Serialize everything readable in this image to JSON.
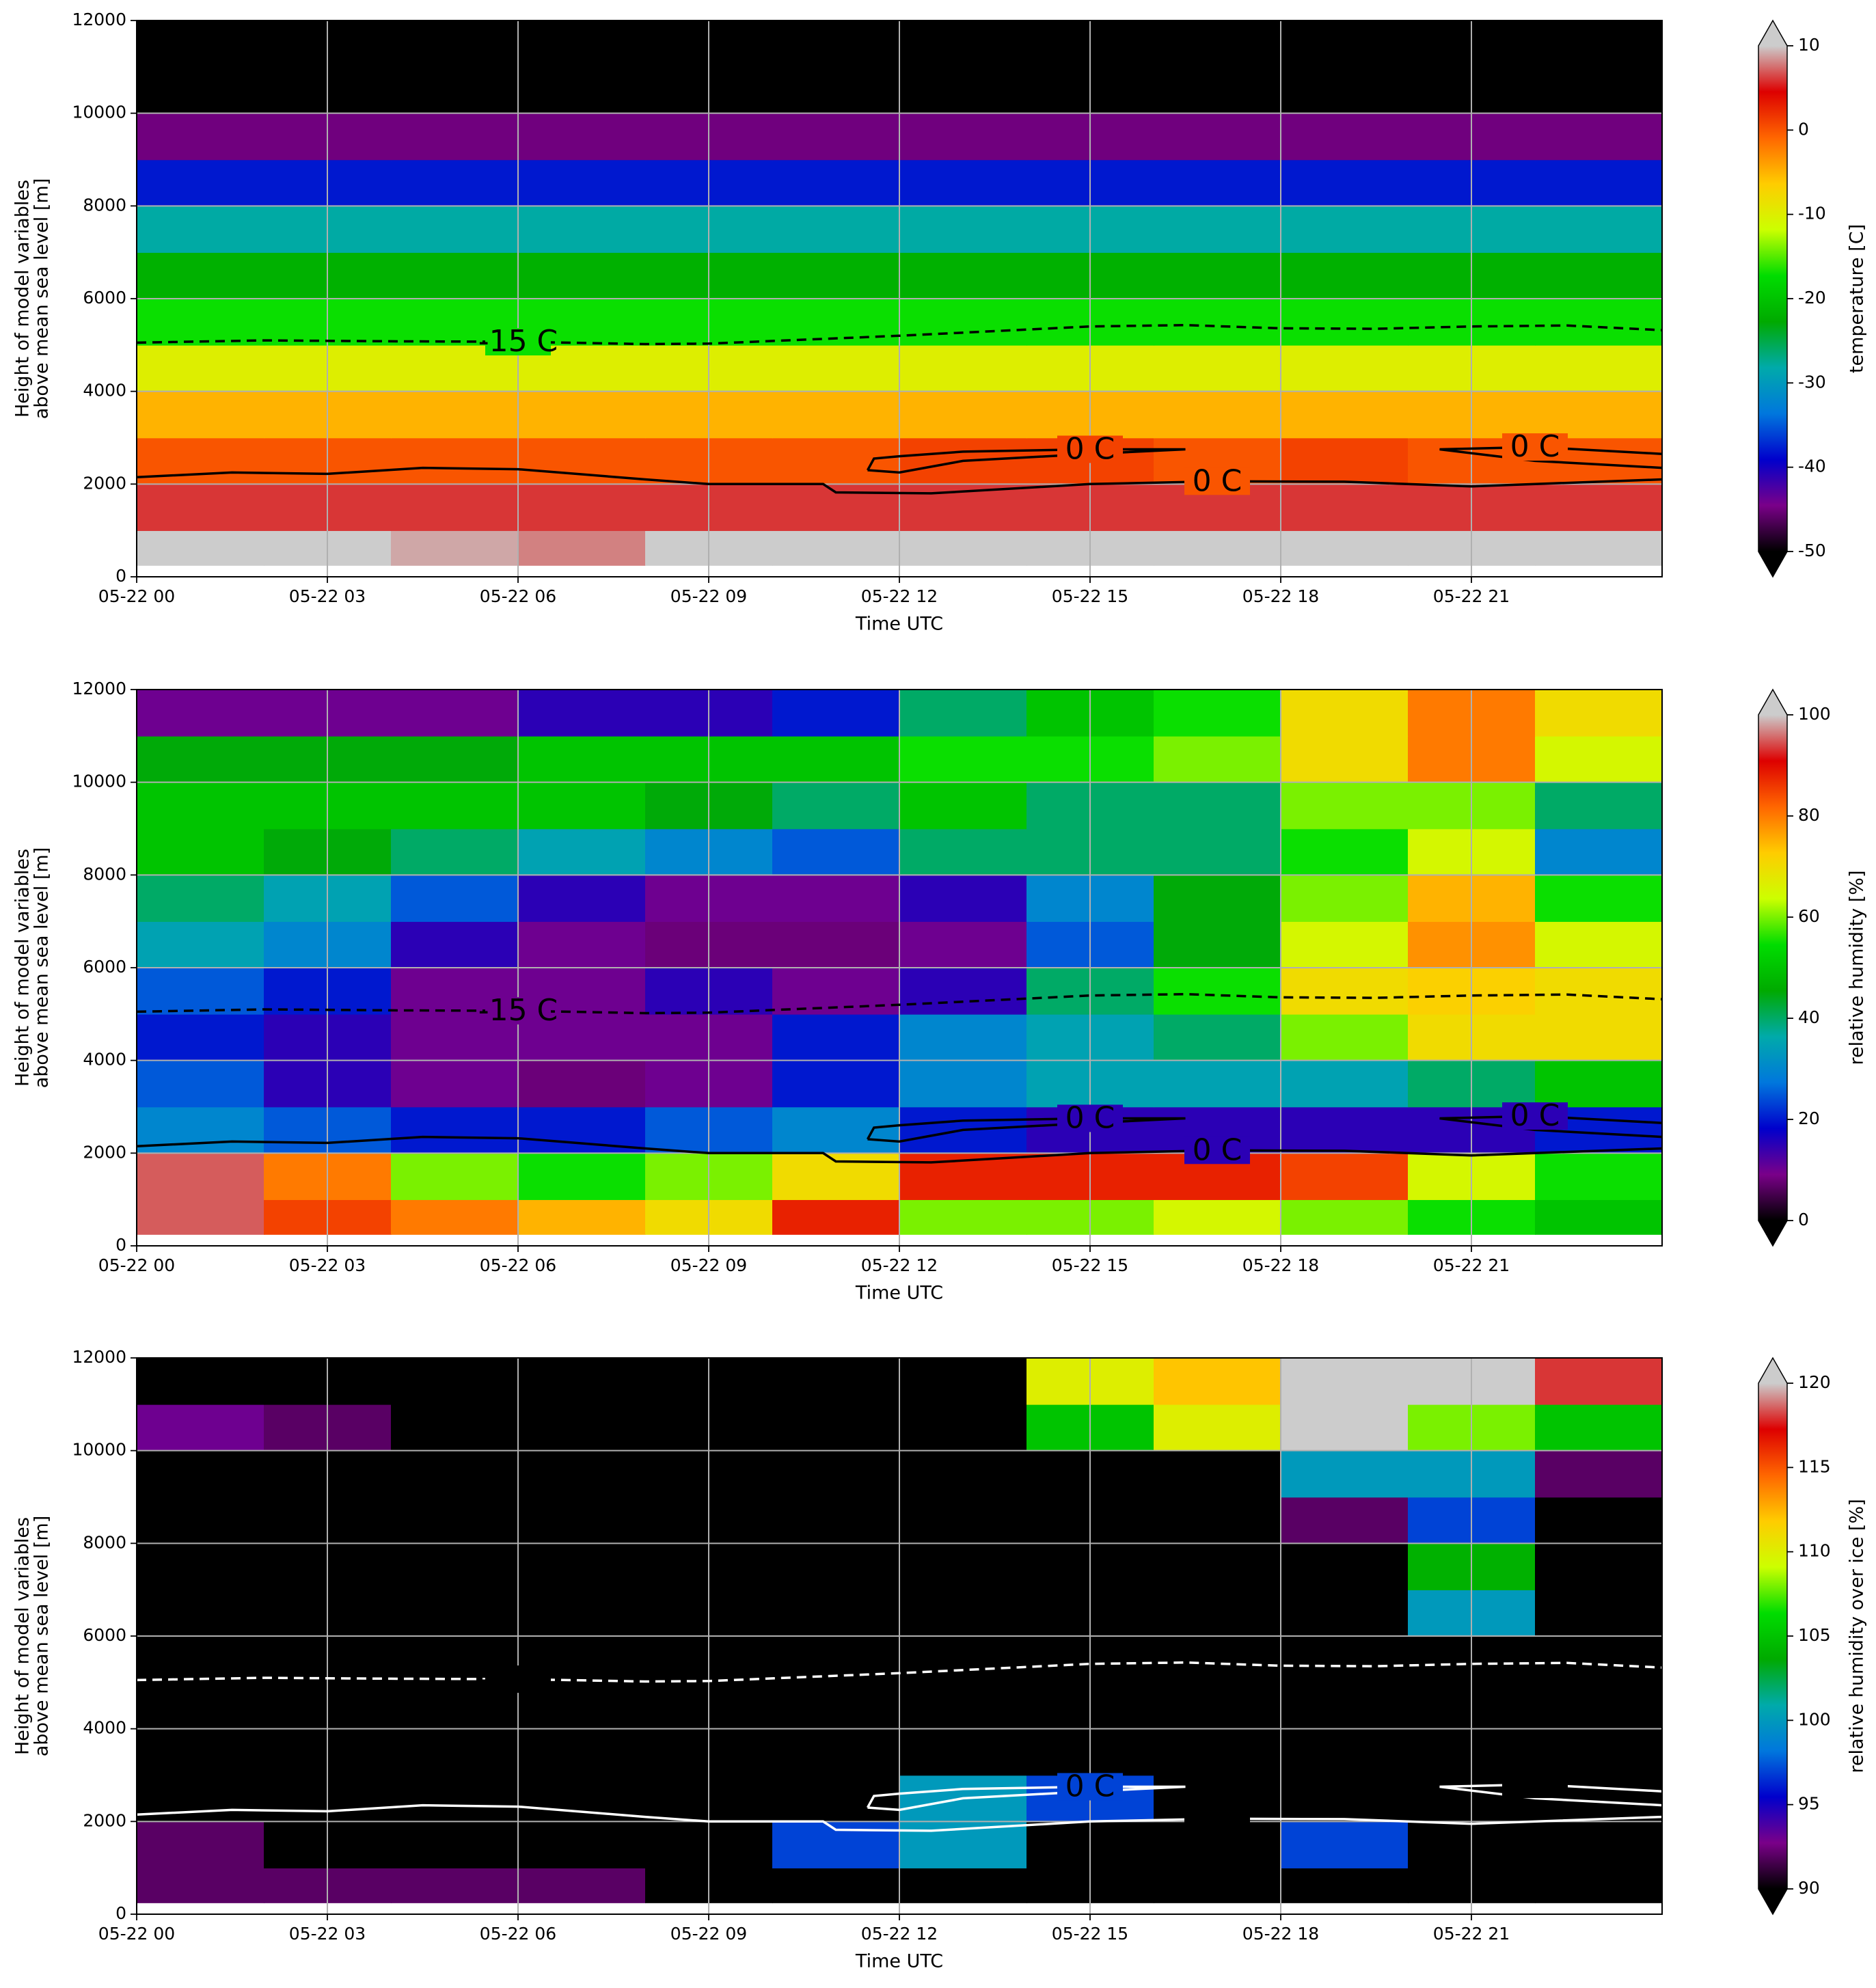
{
  "chart_data": [
    {
      "type": "heatmap",
      "xlabel": "Time UTC",
      "ylabel": [
        "Height of model variables",
        "above mean sea level [m]"
      ],
      "xlim": [
        0,
        24
      ],
      "ylim": [
        0,
        12000
      ],
      "xticks": [
        {
          "value": 0,
          "label": "05-22 00"
        },
        {
          "value": 3,
          "label": "05-22 03"
        },
        {
          "value": 6,
          "label": "05-22 06"
        },
        {
          "value": 9,
          "label": "05-22 09"
        },
        {
          "value": 12,
          "label": "05-22 12"
        },
        {
          "value": 15,
          "label": "05-22 15"
        },
        {
          "value": 18,
          "label": "05-22 18"
        },
        {
          "value": 21,
          "label": "05-22 21"
        }
      ],
      "yticks": [
        0,
        2000,
        4000,
        6000,
        8000,
        10000,
        12000
      ],
      "grid": true,
      "x_edges": [
        0,
        2,
        4,
        6,
        8,
        10,
        12,
        14,
        16,
        18,
        20,
        22,
        24
      ],
      "y_edges": [
        250,
        1000,
        2000,
        3000,
        4000,
        5000,
        6000,
        7000,
        8000,
        9000,
        10000,
        11000,
        12000
      ],
      "z": [
        [
          11,
          10,
          9,
          8,
          11,
          12,
          12,
          12,
          12,
          12,
          12,
          12
        ],
        [
          6,
          6,
          6,
          6,
          6,
          6,
          6,
          6,
          6,
          6,
          6,
          6
        ],
        [
          0,
          0,
          0,
          0,
          0,
          0,
          1,
          1,
          0,
          1,
          0,
          0
        ],
        [
          -5,
          -5,
          -5,
          -5,
          -5,
          -5,
          -5,
          -5,
          -5,
          -5,
          -5,
          -5
        ],
        [
          -10,
          -10,
          -10,
          -10,
          -10,
          -10,
          -10,
          -10,
          -10,
          -10,
          -10,
          -10
        ],
        [
          -17,
          -17,
          -17,
          -17,
          -17,
          -17,
          -17,
          -17,
          -17,
          -17,
          -17,
          -17
        ],
        [
          -22,
          -22,
          -22,
          -22,
          -22,
          -22,
          -22,
          -22,
          -22,
          -22,
          -22,
          -22
        ],
        [
          -28,
          -28,
          -28,
          -28,
          -28,
          -28,
          -28,
          -28,
          -28,
          -28,
          -28,
          -28
        ],
        [
          -38,
          -38,
          -38,
          -38,
          -38,
          -38,
          -38,
          -38,
          -38,
          -38,
          -38,
          -38
        ],
        [
          -45,
          -45,
          -45,
          -45,
          -45,
          -45,
          -45,
          -45,
          -45,
          -45,
          -45,
          -45
        ],
        [
          -55,
          -55,
          -55,
          -55,
          -55,
          -55,
          -55,
          -55,
          -55,
          -55,
          -55,
          -55
        ],
        [
          -55,
          -55,
          -55,
          -55,
          -55,
          -55,
          -55,
          -55,
          -55,
          -55,
          -55,
          -55
        ]
      ],
      "colormap": [
        "#000000",
        "#7a0089",
        "#0000cc",
        "#0077dd",
        "#00aaaa",
        "#00aa00",
        "#00dd00",
        "#ccff00",
        "#ffcc00",
        "#ff6600",
        "#dd0000",
        "#cccccc"
      ],
      "clim": [
        -50,
        10
      ],
      "cticks": [
        -50,
        -40,
        -30,
        -20,
        -10,
        0,
        10
      ],
      "clabel": "temperature [C]",
      "contours": [
        {
          "label": "-15 C",
          "style": "dashed",
          "color": "#000000",
          "x": [
            0,
            2,
            4,
            6,
            8,
            9,
            12,
            15,
            16.5,
            18,
            19.5,
            21,
            22.5,
            24
          ],
          "y": [
            5050,
            5100,
            5080,
            5070,
            5020,
            5030,
            5200,
            5400,
            5430,
            5360,
            5350,
            5400,
            5420,
            5320
          ]
        },
        {
          "label": "0 C",
          "style": "solid",
          "color": "#000000",
          "x": [
            0,
            1.5,
            3,
            4.5,
            6,
            8,
            9,
            10.8,
            11,
            12.5,
            15,
            17,
            19,
            21,
            24
          ],
          "y": [
            2150,
            2250,
            2220,
            2350,
            2320,
            2100,
            2000,
            2000,
            1820,
            1800,
            2000,
            2060,
            2050,
            1950,
            2100
          ]
        },
        {
          "label": "0 C",
          "style": "solid",
          "color": "#000000",
          "x": [
            11.5,
            11.6,
            12,
            13,
            15,
            16.5,
            15,
            13,
            12,
            11.5
          ],
          "y": [
            2300,
            2550,
            2600,
            2700,
            2750,
            2750,
            2650,
            2500,
            2250,
            2300
          ]
        },
        {
          "label": "0 C",
          "style": "solid",
          "color": "#000000",
          "x": [
            24,
            22,
            20.5,
            22,
            24
          ],
          "y": [
            2650,
            2800,
            2750,
            2500,
            2350
          ]
        }
      ]
    },
    {
      "type": "heatmap",
      "xlabel": "Time UTC",
      "ylabel": [
        "Height of model variables",
        "above mean sea level [m]"
      ],
      "xlim": [
        0,
        24
      ],
      "ylim": [
        0,
        12000
      ],
      "xticks": [
        {
          "value": 0,
          "label": "05-22 00"
        },
        {
          "value": 3,
          "label": "05-22 03"
        },
        {
          "value": 6,
          "label": "05-22 06"
        },
        {
          "value": 9,
          "label": "05-22 09"
        },
        {
          "value": 12,
          "label": "05-22 12"
        },
        {
          "value": 15,
          "label": "05-22 15"
        },
        {
          "value": 18,
          "label": "05-22 18"
        },
        {
          "value": 21,
          "label": "05-22 21"
        }
      ],
      "yticks": [
        0,
        2000,
        4000,
        6000,
        8000,
        10000,
        12000
      ],
      "grid": true,
      "x_edges": [
        0,
        2,
        4,
        6,
        8,
        10,
        12,
        14,
        16,
        18,
        20,
        22,
        24
      ],
      "y_edges": [
        250,
        1000,
        2000,
        3000,
        4000,
        5000,
        6000,
        7000,
        8000,
        9000,
        10000,
        11000,
        12000
      ],
      "z": [
        [
          95,
          85,
          80,
          75,
          70,
          88,
          60,
          60,
          65,
          60,
          55,
          50
        ],
        [
          95,
          80,
          60,
          55,
          60,
          70,
          88,
          88,
          88,
          85,
          65,
          55
        ],
        [
          30,
          25,
          20,
          20,
          25,
          30,
          20,
          15,
          15,
          15,
          15,
          20
        ],
        [
          25,
          15,
          10,
          8,
          10,
          20,
          30,
          35,
          35,
          35,
          40,
          50
        ],
        [
          20,
          15,
          10,
          10,
          10,
          20,
          30,
          35,
          40,
          60,
          70,
          70
        ],
        [
          25,
          20,
          10,
          10,
          15,
          10,
          15,
          40,
          55,
          70,
          72,
          70
        ],
        [
          35,
          30,
          15,
          10,
          8,
          8,
          10,
          25,
          45,
          65,
          78,
          65
        ],
        [
          40,
          35,
          25,
          15,
          10,
          10,
          15,
          30,
          45,
          60,
          75,
          55
        ],
        [
          50,
          45,
          40,
          35,
          30,
          25,
          40,
          40,
          40,
          55,
          65,
          30
        ],
        [
          50,
          50,
          50,
          50,
          45,
          40,
          50,
          40,
          40,
          60,
          60,
          40
        ],
        [
          45,
          45,
          45,
          50,
          50,
          50,
          55,
          55,
          60,
          70,
          80,
          65
        ],
        [
          10,
          10,
          10,
          15,
          15,
          20,
          40,
          50,
          55,
          70,
          80,
          70
        ]
      ],
      "colormap": [
        "#000000",
        "#7a0089",
        "#0000cc",
        "#0077dd",
        "#00aaaa",
        "#00aa00",
        "#00dd00",
        "#ccff00",
        "#ffcc00",
        "#ff6600",
        "#dd0000",
        "#cccccc"
      ],
      "clim": [
        0,
        100
      ],
      "cticks": [
        0,
        20,
        40,
        60,
        80,
        100
      ],
      "clabel": "relative humidity [%]",
      "contours": [
        {
          "label": "-15 C",
          "style": "dashed",
          "color": "#000000",
          "x": [
            0,
            2,
            4,
            6,
            8,
            9,
            12,
            15,
            16.5,
            18,
            19.5,
            21,
            22.5,
            24
          ],
          "y": [
            5050,
            5100,
            5080,
            5070,
            5020,
            5030,
            5200,
            5400,
            5430,
            5360,
            5350,
            5400,
            5420,
            5320
          ]
        },
        {
          "label": "0 C",
          "style": "solid",
          "color": "#000000",
          "x": [
            0,
            1.5,
            3,
            4.5,
            6,
            8,
            9,
            10.8,
            11,
            12.5,
            15,
            17,
            19,
            21,
            24
          ],
          "y": [
            2150,
            2250,
            2220,
            2350,
            2320,
            2100,
            2000,
            2000,
            1820,
            1800,
            2000,
            2060,
            2050,
            1950,
            2100
          ]
        },
        {
          "label": "0 C",
          "style": "solid",
          "color": "#000000",
          "x": [
            11.5,
            11.6,
            12,
            13,
            15,
            16.5,
            15,
            13,
            12,
            11.5
          ],
          "y": [
            2300,
            2550,
            2600,
            2700,
            2750,
            2750,
            2650,
            2500,
            2250,
            2300
          ]
        },
        {
          "label": "0 C",
          "style": "solid",
          "color": "#000000",
          "x": [
            24,
            22,
            20.5,
            22,
            24
          ],
          "y": [
            2650,
            2800,
            2750,
            2500,
            2350
          ]
        }
      ]
    },
    {
      "type": "heatmap",
      "xlabel": "Time UTC",
      "ylabel": [
        "Height of model variables",
        "above mean sea level [m]"
      ],
      "xlim": [
        0,
        24
      ],
      "ylim": [
        0,
        12000
      ],
      "xticks": [
        {
          "value": 0,
          "label": "05-22 00"
        },
        {
          "value": 3,
          "label": "05-22 03"
        },
        {
          "value": 6,
          "label": "05-22 06"
        },
        {
          "value": 9,
          "label": "05-22 09"
        },
        {
          "value": 12,
          "label": "05-22 12"
        },
        {
          "value": 15,
          "label": "05-22 15"
        },
        {
          "value": 18,
          "label": "05-22 18"
        },
        {
          "value": 21,
          "label": "05-22 21"
        }
      ],
      "yticks": [
        0,
        2000,
        4000,
        6000,
        8000,
        10000,
        12000
      ],
      "grid": true,
      "x_edges": [
        0,
        2,
        4,
        6,
        8,
        10,
        12,
        14,
        16,
        18,
        20,
        22,
        24
      ],
      "y_edges": [
        250,
        1000,
        2000,
        3000,
        4000,
        5000,
        6000,
        7000,
        8000,
        9000,
        10000,
        11000,
        12000
      ],
      "z": [
        [
          92,
          92,
          92,
          92,
          80,
          80,
          80,
          80,
          80,
          80,
          80,
          80
        ],
        [
          92,
          80,
          80,
          80,
          80,
          97,
          100,
          80,
          80,
          97,
          80,
          80
        ],
        [
          80,
          80,
          80,
          80,
          80,
          80,
          100,
          97,
          80,
          80,
          80,
          80
        ],
        [
          80,
          80,
          80,
          80,
          80,
          80,
          80,
          80,
          80,
          80,
          80,
          80
        ],
        [
          80,
          80,
          80,
          80,
          80,
          80,
          80,
          80,
          80,
          80,
          80,
          80
        ],
        [
          80,
          80,
          80,
          80,
          80,
          80,
          80,
          80,
          80,
          80,
          80,
          80
        ],
        [
          80,
          80,
          80,
          80,
          80,
          80,
          80,
          80,
          80,
          80,
          100,
          80
        ],
        [
          80,
          80,
          80,
          80,
          80,
          80,
          80,
          80,
          80,
          80,
          104,
          80
        ],
        [
          80,
          80,
          80,
          80,
          80,
          80,
          80,
          80,
          80,
          92,
          97,
          80
        ],
        [
          80,
          80,
          80,
          80,
          80,
          80,
          80,
          80,
          80,
          100,
          100,
          92
        ],
        [
          93,
          92,
          80,
          80,
          80,
          80,
          80,
          105,
          110,
          120,
          108,
          105
        ],
        [
          80,
          80,
          80,
          80,
          80,
          80,
          80,
          110,
          112,
          120,
          120,
          118
        ]
      ],
      "colormap": [
        "#000000",
        "#7a0089",
        "#0000cc",
        "#0077dd",
        "#00aaaa",
        "#00aa00",
        "#00dd00",
        "#ccff00",
        "#ffcc00",
        "#ff6600",
        "#dd0000",
        "#cccccc"
      ],
      "clim": [
        90,
        120
      ],
      "cticks": [
        90,
        95,
        100,
        105,
        110,
        115,
        120
      ],
      "clabel": "relative humidity over ice [%]",
      "contours": [
        {
          "label": "-15 C",
          "style": "dashed",
          "color": "#ffffff",
          "x": [
            0,
            2,
            4,
            6,
            8,
            9,
            12,
            15,
            16.5,
            18,
            19.5,
            21,
            22.5,
            24
          ],
          "y": [
            5050,
            5100,
            5080,
            5070,
            5020,
            5030,
            5200,
            5400,
            5430,
            5360,
            5350,
            5400,
            5420,
            5320
          ]
        },
        {
          "label": "0 C",
          "style": "solid",
          "color": "#ffffff",
          "x": [
            0,
            1.5,
            3,
            4.5,
            6,
            8,
            9,
            10.8,
            11,
            12.5,
            15,
            17,
            19,
            21,
            24
          ],
          "y": [
            2150,
            2250,
            2220,
            2350,
            2320,
            2100,
            2000,
            2000,
            1820,
            1800,
            2000,
            2060,
            2050,
            1950,
            2100
          ]
        },
        {
          "label": "0 C",
          "style": "solid",
          "color": "#ffffff",
          "x": [
            11.5,
            11.6,
            12,
            13,
            15,
            16.5,
            15,
            13,
            12,
            11.5
          ],
          "y": [
            2300,
            2550,
            2600,
            2700,
            2750,
            2750,
            2650,
            2500,
            2250,
            2300
          ]
        },
        {
          "label": "0 C",
          "style": "solid",
          "color": "#ffffff",
          "x": [
            24,
            22,
            20.5,
            22,
            24
          ],
          "y": [
            2650,
            2800,
            2750,
            2500,
            2350
          ]
        }
      ]
    }
  ]
}
